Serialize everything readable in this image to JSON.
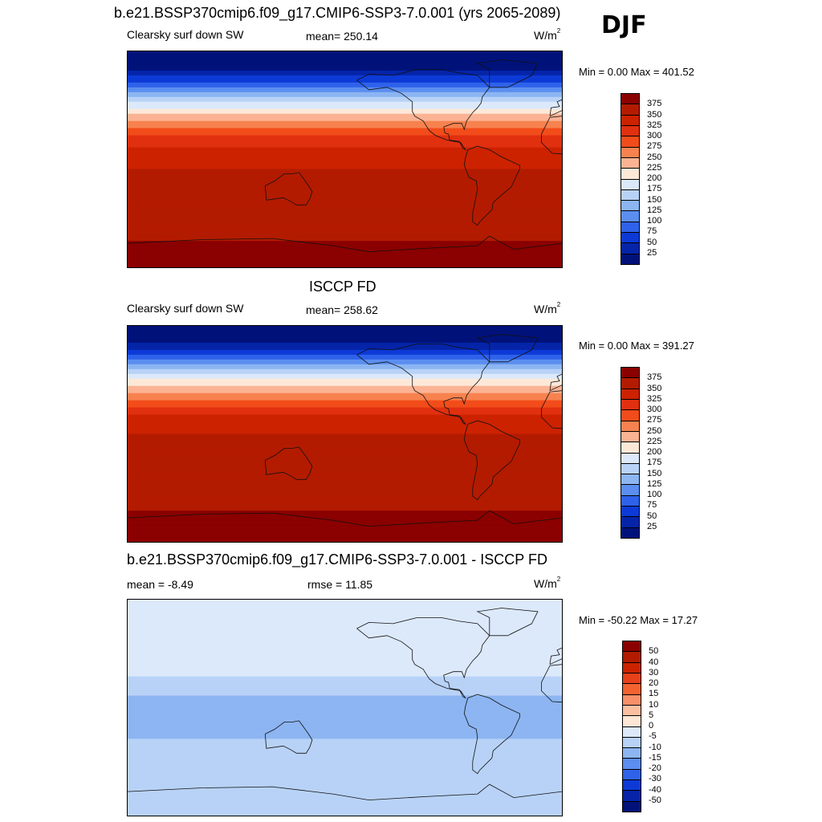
{
  "header": {
    "title": "b.e21.BSSP370cmip6.f09_g17.CMIP6-SSP3-7.0.001 (yrs 2065-2089)",
    "season": "DJF"
  },
  "panels": [
    {
      "variable": "Clearsky surf down SW",
      "stat_label": "mean= 250.14",
      "units": "W/m",
      "units_exp": "2",
      "minmax": "Min =   0.00 Max = 401.52"
    },
    {
      "title": "ISCCP FD",
      "variable": "Clearsky surf down SW",
      "stat_label": "mean= 258.62",
      "units": "W/m",
      "units_exp": "2",
      "minmax": "Min =   0.00 Max = 391.27"
    },
    {
      "title": "b.e21.BSSP370cmip6.f09_g17.CMIP6-SSP3-7.0.001 - ISCCP FD",
      "stat_label": "mean =  -8.49",
      "stat_label2": "rmse =  11.85",
      "units": "W/m",
      "units_exp": "2",
      "minmax": "Min = -50.22 Max =  17.27"
    }
  ],
  "colorbars": {
    "absolute": {
      "labels": [
        "375",
        "350",
        "325",
        "300",
        "275",
        "250",
        "225",
        "200",
        "175",
        "150",
        "125",
        "100",
        "75",
        "50",
        "25"
      ],
      "colors": [
        "#8b0000",
        "#b31b00",
        "#cc2200",
        "#e03010",
        "#f24c1a",
        "#f7824f",
        "#fbb394",
        "#fde8d8",
        "#dce9fb",
        "#b8d2f7",
        "#8cb5f2",
        "#5b8ef0",
        "#2f62ea",
        "#0d3ad6",
        "#0524a8",
        "#00127a"
      ]
    },
    "difference": {
      "labels": [
        "50",
        "40",
        "30",
        "20",
        "15",
        "10",
        "5",
        "0",
        "-5",
        "-10",
        "-15",
        "-20",
        "-30",
        "-40",
        "-50"
      ],
      "colors": [
        "#8b0000",
        "#b31b00",
        "#cc2200",
        "#e8401a",
        "#f4622f",
        "#f89068",
        "#fbbfa0",
        "#fde6d6",
        "#dce9fb",
        "#b8d2f7",
        "#8cb5f2",
        "#5b8ef0",
        "#2f62ea",
        "#0d3ad6",
        "#0524a8",
        "#00127a"
      ]
    }
  },
  "chart_data": [
    {
      "type": "heatmap",
      "title": "b.e21.BSSP370cmip6.f09_g17.CMIP6-SSP3-7.0.001 (yrs 2065-2089)",
      "variable": "Clearsky surf down SW",
      "season": "DJF",
      "mean": 250.14,
      "min": 0.0,
      "max": 401.52,
      "units": "W/m2",
      "levels": [
        25,
        50,
        75,
        100,
        125,
        150,
        175,
        200,
        225,
        250,
        275,
        300,
        325,
        350,
        375
      ],
      "latitude_profile": [
        {
          "lat": 90,
          "value": 0
        },
        {
          "lat": 75,
          "value": 20
        },
        {
          "lat": 60,
          "value": 100
        },
        {
          "lat": 45,
          "value": 190
        },
        {
          "lat": 30,
          "value": 260
        },
        {
          "lat": 15,
          "value": 315
        },
        {
          "lat": 0,
          "value": 345
        },
        {
          "lat": -15,
          "value": 355
        },
        {
          "lat": -30,
          "value": 360
        },
        {
          "lat": -45,
          "value": 360
        },
        {
          "lat": -60,
          "value": 360
        },
        {
          "lat": -75,
          "value": 385
        },
        {
          "lat": -90,
          "value": 395
        }
      ]
    },
    {
      "type": "heatmap",
      "title": "ISCCP FD",
      "variable": "Clearsky surf down SW",
      "season": "DJF",
      "mean": 258.62,
      "min": 0.0,
      "max": 391.27,
      "units": "W/m2",
      "levels": [
        25,
        50,
        75,
        100,
        125,
        150,
        175,
        200,
        225,
        250,
        275,
        300,
        325,
        350,
        375
      ],
      "latitude_profile": [
        {
          "lat": 90,
          "value": 0
        },
        {
          "lat": 75,
          "value": 25
        },
        {
          "lat": 60,
          "value": 110
        },
        {
          "lat": 45,
          "value": 200
        },
        {
          "lat": 30,
          "value": 270
        },
        {
          "lat": 15,
          "value": 325
        },
        {
          "lat": 0,
          "value": 350
        },
        {
          "lat": -15,
          "value": 360
        },
        {
          "lat": -30,
          "value": 365
        },
        {
          "lat": -45,
          "value": 365
        },
        {
          "lat": -60,
          "value": 370
        },
        {
          "lat": -75,
          "value": 385
        },
        {
          "lat": -90,
          "value": 390
        }
      ]
    },
    {
      "type": "heatmap",
      "title": "b.e21.BSSP370cmip6.f09_g17.CMIP6-SSP3-7.0.001 - ISCCP FD",
      "season": "DJF",
      "mean": -8.49,
      "rmse": 11.85,
      "min": -50.22,
      "max": 17.27,
      "units": "W/m2",
      "levels": [
        -50,
        -40,
        -30,
        -20,
        -15,
        -10,
        -5,
        0,
        5,
        10,
        15,
        20,
        30,
        40,
        50
      ],
      "latitude_profile": [
        {
          "lat": 90,
          "value": -2
        },
        {
          "lat": 60,
          "value": -3
        },
        {
          "lat": 30,
          "value": -4
        },
        {
          "lat": 15,
          "value": -8
        },
        {
          "lat": 0,
          "value": -15
        },
        {
          "lat": -15,
          "value": -15
        },
        {
          "lat": -30,
          "value": -8
        },
        {
          "lat": -45,
          "value": -10
        },
        {
          "lat": -60,
          "value": -8
        },
        {
          "lat": -75,
          "value": -10
        },
        {
          "lat": -90,
          "value": -6
        }
      ]
    }
  ]
}
